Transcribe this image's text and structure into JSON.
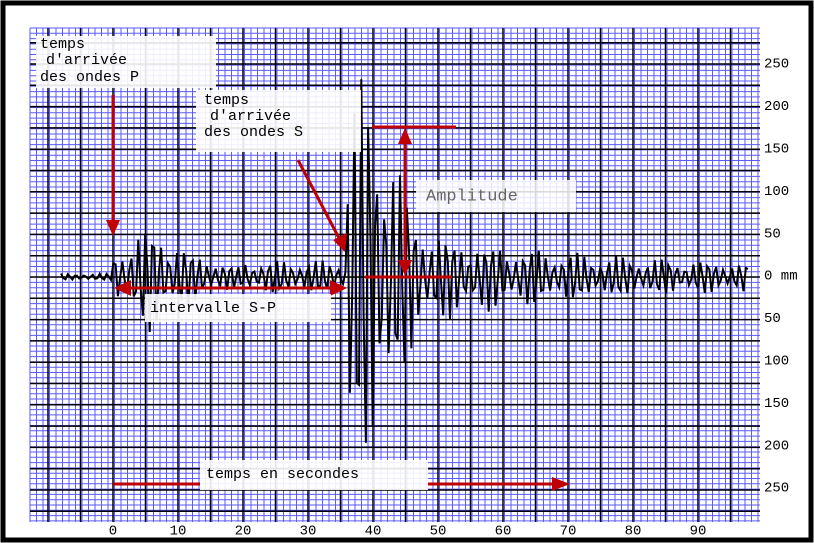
{
  "annotations": {
    "p_wave": [
      "temps",
      "d'arrivée",
      "des ondes P"
    ],
    "s_wave": [
      "temps",
      "d'arrivée",
      "des ondes S"
    ],
    "amplitude": "Amplitude",
    "interval": "intervalle S-P",
    "time": "temps en secondes"
  },
  "y_labels": [
    "250",
    "200",
    "150",
    "100",
    "50",
    "0 mm",
    "50",
    "100",
    "150",
    "200",
    "250"
  ],
  "x_labels": [
    "0",
    "10",
    "20",
    "30",
    "40",
    "50",
    "60",
    "70",
    "80",
    "90"
  ]
}
